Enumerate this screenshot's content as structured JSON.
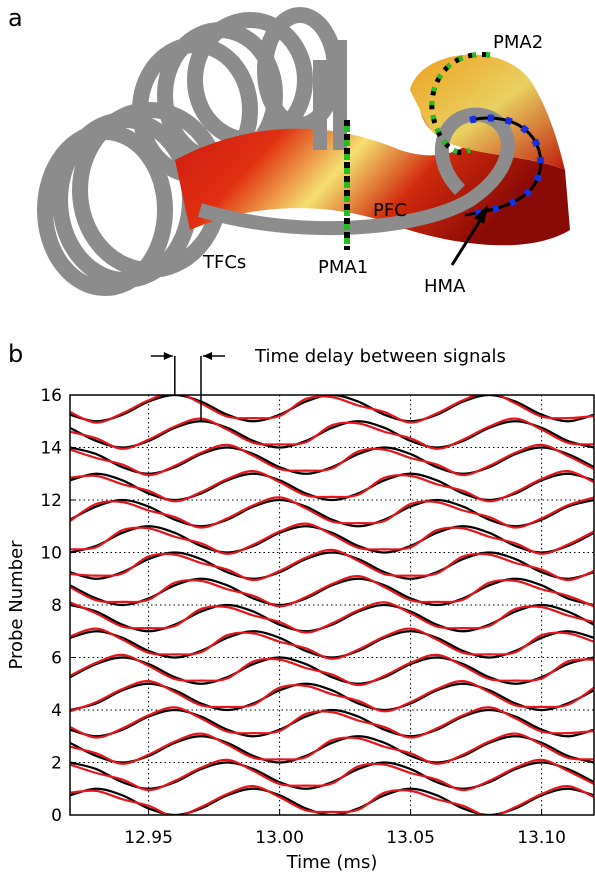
{
  "panel_a": {
    "panel_label": "a",
    "labels": {
      "tfcs": "TFCs",
      "pma1": "PMA1",
      "pma2": "PMA2",
      "pfc": "PFC",
      "hma": "HMA"
    }
  },
  "panel_b_label": "b",
  "chart_data": {
    "type": "line",
    "xlabel": "Time (ms)",
    "ylabel": "Probe Number",
    "annotation": "Time delay between signals",
    "xlim": [
      12.92,
      13.12
    ],
    "ylim": [
      0,
      16
    ],
    "xticks": [
      12.95,
      {
        "value": 13,
        "label": "13.00"
      },
      13.05,
      {
        "value": 13.1,
        "label": "13.10"
      }
    ],
    "yticks": [
      0,
      2,
      4,
      6,
      8,
      10,
      12,
      14,
      16
    ],
    "grid": true,
    "x": [
      12.92,
      12.93,
      12.94,
      12.95,
      12.96,
      12.97,
      12.98,
      12.99,
      13.0,
      13.01,
      13.02,
      13.03,
      13.04,
      13.05,
      13.06,
      13.07,
      13.08,
      13.09,
      13.1,
      13.11,
      13.12
    ],
    "series": [
      {
        "color": "#000000",
        "values": [
          0.75,
          1,
          0.75,
          0.25,
          0,
          0.25,
          0.75,
          1,
          0.75,
          0.25,
          0,
          0.25,
          0.75,
          1,
          0.75,
          0.25,
          0,
          0.25,
          0.75,
          1,
          0.75
        ]
      },
      {
        "color": "#000000",
        "values": [
          2,
          1.75,
          1.25,
          1,
          1.25,
          1.75,
          2,
          1.75,
          1.25,
          1,
          1.25,
          1.75,
          2,
          1.75,
          1.25,
          1,
          1.25,
          1.75,
          2,
          1.75,
          1.25
        ]
      },
      {
        "color": "#000000",
        "values": [
          2.75,
          2.25,
          2,
          2.25,
          2.75,
          3,
          2.75,
          2.25,
          2,
          2.25,
          2.75,
          3,
          2.75,
          2.25,
          2,
          2.25,
          2.75,
          3,
          2.75,
          2.25,
          2
        ]
      },
      {
        "color": "#000000",
        "values": [
          3.25,
          3,
          3.25,
          3.75,
          4,
          3.75,
          3.25,
          3,
          3.25,
          3.75,
          4,
          3.75,
          3.25,
          3,
          3.25,
          3.75,
          4,
          3.75,
          3.25,
          3,
          3.25
        ]
      },
      {
        "color": "#000000",
        "values": [
          4,
          4.25,
          4.75,
          5,
          4.75,
          4.25,
          4,
          4.25,
          4.75,
          5,
          4.75,
          4.25,
          4,
          4.25,
          4.75,
          5,
          4.75,
          4.25,
          4,
          4.25,
          4.75
        ]
      },
      {
        "color": "#000000",
        "values": [
          5.25,
          5.75,
          6,
          5.75,
          5.25,
          5,
          5.25,
          5.75,
          6,
          5.75,
          5.25,
          5,
          5.25,
          5.75,
          6,
          5.75,
          5.25,
          5,
          5.25,
          5.75,
          6
        ]
      },
      {
        "color": "#000000",
        "values": [
          6.75,
          7,
          6.75,
          6.25,
          6,
          6.25,
          6.75,
          7,
          6.75,
          6.25,
          6,
          6.25,
          6.75,
          7,
          6.75,
          6.25,
          6,
          6.25,
          6.75,
          7,
          6.75
        ]
      },
      {
        "color": "#000000",
        "values": [
          8,
          7.75,
          7.25,
          7,
          7.25,
          7.75,
          8,
          7.75,
          7.25,
          7,
          7.25,
          7.75,
          8,
          7.75,
          7.25,
          7,
          7.25,
          7.75,
          8,
          7.75,
          7.25
        ]
      },
      {
        "color": "#000000",
        "values": [
          8.75,
          8.25,
          8,
          8.25,
          8.75,
          9,
          8.75,
          8.25,
          8,
          8.25,
          8.75,
          9,
          8.75,
          8.25,
          8,
          8.25,
          8.75,
          9,
          8.75,
          8.25,
          8
        ]
      },
      {
        "color": "#000000",
        "values": [
          9.25,
          9,
          9.25,
          9.75,
          10,
          9.75,
          9.25,
          9,
          9.25,
          9.75,
          10,
          9.75,
          9.25,
          9,
          9.25,
          9.75,
          10,
          9.75,
          9.25,
          9,
          9.25
        ]
      },
      {
        "color": "#000000",
        "values": [
          10,
          10.25,
          10.75,
          11,
          10.75,
          10.25,
          10,
          10.25,
          10.75,
          11,
          10.75,
          10.25,
          10,
          10.25,
          10.75,
          11,
          10.75,
          10.25,
          10,
          10.25,
          10.75
        ]
      },
      {
        "color": "#000000",
        "values": [
          11.25,
          11.75,
          12,
          11.75,
          11.25,
          11,
          11.25,
          11.75,
          12,
          11.75,
          11.25,
          11,
          11.25,
          11.75,
          12,
          11.75,
          11.25,
          11,
          11.25,
          11.75,
          12
        ]
      },
      {
        "color": "#000000",
        "values": [
          12.75,
          13,
          12.75,
          12.25,
          12,
          12.25,
          12.75,
          13,
          12.75,
          12.25,
          12,
          12.25,
          12.75,
          13,
          12.75,
          12.25,
          12,
          12.25,
          12.75,
          13,
          12.75
        ]
      },
      {
        "color": "#000000",
        "values": [
          14,
          13.75,
          13.25,
          13,
          13.25,
          13.75,
          14,
          13.75,
          13.25,
          13,
          13.25,
          13.75,
          14,
          13.75,
          13.25,
          13,
          13.25,
          13.75,
          14,
          13.75,
          13.25
        ]
      },
      {
        "color": "#000000",
        "values": [
          14.75,
          14.25,
          14,
          14.25,
          14.75,
          15,
          14.75,
          14.25,
          14,
          14.25,
          14.75,
          15,
          14.75,
          14.25,
          14,
          14.25,
          14.75,
          15,
          14.75,
          14.25,
          14
        ]
      },
      {
        "color": "#000000",
        "values": [
          15.25,
          15,
          15.25,
          15.75,
          16,
          15.75,
          15.25,
          15,
          15.25,
          15.75,
          16,
          15.75,
          15.25,
          15,
          15.25,
          15.75,
          16,
          15.75,
          15.25,
          15,
          15.25
        ]
      },
      {
        "color": "#e8141b",
        "values": [
          0.85,
          0.92,
          0.6,
          0.35,
          -0.05,
          0.3,
          0.8,
          1.1,
          0.68,
          0.18,
          0.12,
          0.2,
          0.85,
          0.92,
          0.6,
          0.35,
          -0.05,
          0.3,
          0.8,
          1.1,
          0.68
        ]
      },
      {
        "color": "#e8141b",
        "values": [
          1.92,
          1.6,
          1.35,
          0.95,
          1.3,
          1.8,
          2.1,
          1.68,
          1.18,
          1.12,
          1.2,
          1.85,
          1.92,
          1.6,
          1.35,
          0.95,
          1.3,
          1.8,
          2.1,
          1.68,
          1.18
        ]
      },
      {
        "color": "#e8141b",
        "values": [
          2.6,
          2.35,
          1.95,
          2.3,
          2.8,
          3.1,
          2.68,
          2.18,
          2.12,
          2.2,
          2.85,
          2.92,
          2.6,
          2.35,
          1.95,
          2.3,
          2.8,
          3.1,
          2.68,
          2.18,
          2.12
        ]
      },
      {
        "color": "#e8141b",
        "values": [
          3.35,
          2.95,
          3.3,
          3.8,
          4.1,
          3.68,
          3.18,
          3.12,
          3.2,
          3.85,
          3.92,
          3.6,
          3.35,
          2.95,
          3.3,
          3.8,
          4.1,
          3.68,
          3.18,
          3.12,
          3.2
        ]
      },
      {
        "color": "#e8141b",
        "values": [
          3.95,
          4.3,
          4.8,
          5.1,
          4.68,
          4.18,
          4.12,
          4.2,
          4.85,
          4.92,
          4.6,
          4.35,
          3.95,
          4.3,
          4.8,
          5.1,
          4.68,
          4.18,
          4.12,
          4.2,
          4.85
        ]
      },
      {
        "color": "#e8141b",
        "values": [
          5.3,
          5.8,
          6.1,
          5.68,
          5.18,
          5.12,
          5.2,
          5.85,
          5.92,
          5.6,
          5.35,
          4.95,
          5.3,
          5.8,
          6.1,
          5.68,
          5.18,
          5.12,
          5.2,
          5.85,
          5.92
        ]
      },
      {
        "color": "#e8141b",
        "values": [
          6.8,
          7.1,
          6.68,
          6.18,
          6.12,
          6.2,
          6.85,
          6.92,
          6.6,
          6.35,
          5.95,
          6.3,
          6.8,
          7.1,
          6.68,
          6.18,
          6.12,
          6.2,
          6.85,
          6.92,
          6.6
        ]
      },
      {
        "color": "#e8141b",
        "values": [
          8.1,
          7.68,
          7.18,
          7.12,
          7.2,
          7.85,
          7.92,
          7.6,
          7.35,
          6.95,
          7.3,
          7.8,
          8.1,
          7.68,
          7.18,
          7.12,
          7.2,
          7.85,
          7.92,
          7.6,
          7.35
        ]
      },
      {
        "color": "#e8141b",
        "values": [
          8.68,
          8.18,
          8.12,
          8.2,
          8.85,
          8.92,
          8.6,
          8.35,
          7.95,
          8.3,
          8.8,
          9.1,
          8.68,
          8.18,
          8.12,
          8.2,
          8.85,
          8.92,
          8.6,
          8.35,
          7.95
        ]
      },
      {
        "color": "#e8141b",
        "values": [
          9.18,
          9.12,
          9.2,
          9.85,
          9.92,
          9.6,
          9.35,
          8.95,
          9.3,
          9.8,
          10.1,
          9.68,
          9.18,
          9.12,
          9.2,
          9.85,
          9.92,
          9.6,
          9.35,
          8.95,
          9.3
        ]
      },
      {
        "color": "#e8141b",
        "values": [
          10.12,
          10.2,
          10.85,
          10.92,
          10.6,
          10.35,
          9.95,
          10.3,
          10.8,
          11.1,
          10.68,
          10.18,
          10.12,
          10.2,
          10.85,
          10.92,
          10.6,
          10.35,
          9.95,
          10.3,
          10.8
        ]
      },
      {
        "color": "#e8141b",
        "values": [
          11.2,
          11.85,
          11.92,
          11.6,
          11.35,
          10.95,
          11.3,
          11.8,
          12.1,
          11.68,
          11.18,
          11.12,
          11.2,
          11.85,
          11.92,
          11.6,
          11.35,
          10.95,
          11.3,
          11.8,
          12.1
        ]
      },
      {
        "color": "#e8141b",
        "values": [
          12.85,
          12.92,
          12.6,
          12.35,
          11.95,
          12.3,
          12.8,
          13.1,
          12.68,
          12.18,
          12.12,
          12.2,
          12.85,
          12.92,
          12.6,
          12.35,
          11.95,
          12.3,
          12.8,
          13.1,
          12.68
        ]
      },
      {
        "color": "#e8141b",
        "values": [
          13.92,
          13.6,
          13.35,
          12.95,
          13.3,
          13.8,
          14.1,
          13.68,
          13.18,
          13.12,
          13.2,
          13.85,
          13.92,
          13.6,
          13.35,
          12.95,
          13.3,
          13.8,
          14.1,
          13.68,
          13.18
        ]
      },
      {
        "color": "#e8141b",
        "values": [
          14.6,
          14.35,
          13.95,
          14.3,
          14.8,
          15.1,
          14.68,
          14.18,
          14.12,
          14.2,
          14.85,
          14.92,
          14.6,
          14.35,
          13.95,
          14.3,
          14.8,
          15.1,
          14.68,
          14.18,
          14.12
        ]
      },
      {
        "color": "#e8141b",
        "values": [
          15.35,
          14.95,
          15.3,
          15.8,
          16.1,
          15.68,
          15.18,
          15.12,
          15.2,
          15.85,
          15.92,
          15.6,
          15.35,
          14.95,
          15.3,
          15.8,
          16.1,
          15.68,
          15.18,
          15.12,
          15.2
        ]
      }
    ]
  }
}
